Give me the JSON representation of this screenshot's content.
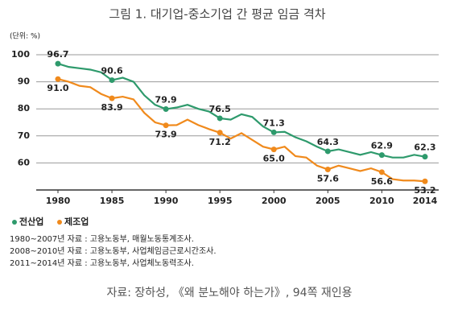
{
  "chart_data": {
    "type": "line",
    "title": "그림 1. 대기업-중소기업 간 평균 임금 격차",
    "unit_label": "(단위: %)",
    "x": [
      1980,
      1981,
      1982,
      1983,
      1984,
      1985,
      1986,
      1987,
      1988,
      1989,
      1990,
      1991,
      1992,
      1993,
      1994,
      1995,
      1996,
      1997,
      1998,
      1999,
      2000,
      2001,
      2002,
      2003,
      2004,
      2005,
      2006,
      2007,
      2008,
      2009,
      2010,
      2011,
      2012,
      2013,
      2014
    ],
    "series": [
      {
        "name": "전산업",
        "color": "#2e9a6c",
        "values": [
          96.7,
          95.5,
          95,
          94.5,
          93.5,
          90.6,
          91.5,
          90,
          85,
          81.5,
          79.9,
          80.5,
          81.5,
          80,
          79,
          76.5,
          76,
          78,
          77,
          73.5,
          71.3,
          71.5,
          69.5,
          68,
          66,
          64.3,
          65,
          64,
          63,
          64,
          62.9,
          62,
          62,
          63,
          62.3
        ],
        "value_labels": [
          "96.7",
          null,
          null,
          null,
          null,
          "90.6",
          null,
          null,
          null,
          null,
          "79.9",
          null,
          null,
          null,
          null,
          "76.5",
          null,
          null,
          null,
          null,
          "71.3",
          null,
          null,
          null,
          null,
          "64.3",
          null,
          null,
          null,
          null,
          "62.9",
          null,
          null,
          null,
          "62.3"
        ]
      },
      {
        "name": "제조업",
        "color": "#f08a1c",
        "values": [
          91.0,
          90,
          88.5,
          88,
          85.5,
          83.9,
          84.5,
          83.5,
          78.5,
          75,
          73.9,
          74,
          76,
          74,
          72.5,
          71.2,
          69,
          71,
          68.5,
          66,
          65.0,
          66,
          62.5,
          62,
          59,
          57.6,
          59,
          58,
          57,
          58,
          56.6,
          54,
          53.5,
          53.5,
          53.2
        ],
        "value_labels": [
          "91.0",
          null,
          null,
          null,
          null,
          "83.9",
          null,
          null,
          null,
          null,
          "73.9",
          null,
          null,
          null,
          null,
          "71.2",
          null,
          null,
          null,
          null,
          "65.0",
          null,
          null,
          null,
          null,
          "57.6",
          null,
          null,
          null,
          null,
          "56.6",
          null,
          null,
          null,
          "53.2"
        ]
      }
    ],
    "xlim": [
      1980,
      2014
    ],
    "xticks": [
      1980,
      1985,
      1990,
      1995,
      2000,
      2005,
      2010,
      2014
    ],
    "ylim": [
      50,
      100
    ],
    "yticks": [
      60,
      70,
      80,
      90,
      100
    ],
    "grid": true,
    "notes": [
      "1980~2007년 자료 : 고용노동부, 매월노동통계조사.",
      "2008~2010년 자료 : 고용노동부, 사업체임금근로시간조사.",
      "2011~2014년 자료 : 고용노동부, 사업체노동력조사."
    ],
    "caption": "자료: 장하성, 《왜 분노해야 하는가》, 94쪽 재인용"
  }
}
